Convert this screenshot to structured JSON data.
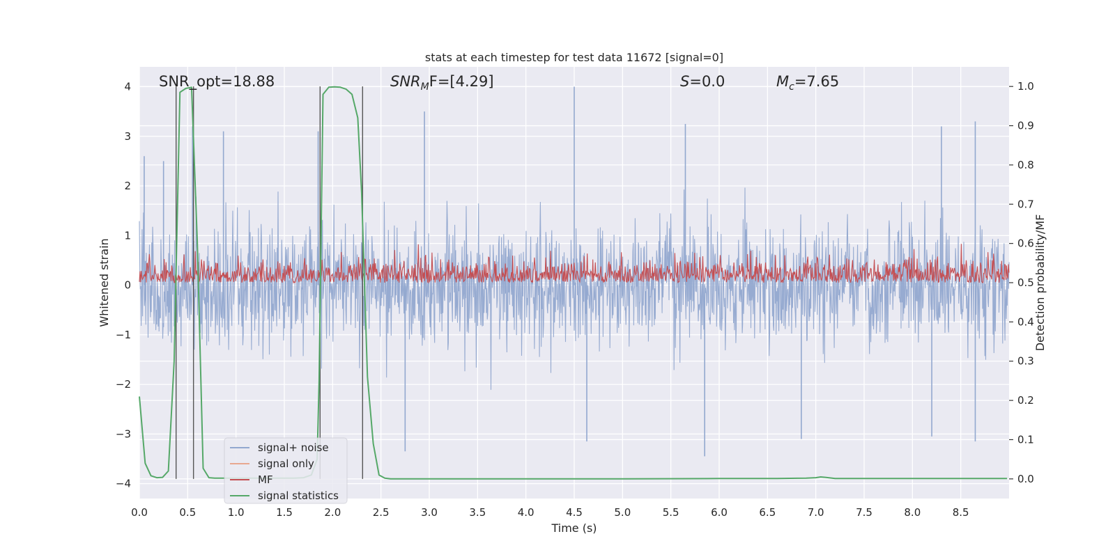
{
  "chart_data": {
    "type": "line",
    "title": "stats at each timestep for test data 11672 [signal=0]",
    "xlabel": "Time (s)",
    "ylabel_left": "Whitened strain",
    "ylabel_right": "Detection probability/MF",
    "xlim": [
      0.0,
      9.0
    ],
    "ylim_left": [
      -4.3,
      4.4
    ],
    "ylim_right": [
      -0.05,
      1.05
    ],
    "xticks": [
      "0.0",
      "0.5",
      "1.0",
      "1.5",
      "2.0",
      "2.5",
      "3.0",
      "3.5",
      "4.0",
      "4.5",
      "5.0",
      "5.5",
      "6.0",
      "6.5",
      "7.0",
      "7.5",
      "8.0",
      "8.5"
    ],
    "yticks_left": [
      "4",
      "3",
      "2",
      "1",
      "0",
      "−1",
      "−2",
      "−3",
      "−4"
    ],
    "yticks_right": [
      "1.0",
      "0.9",
      "0.8",
      "0.7",
      "0.6",
      "0.5",
      "0.4",
      "0.3",
      "0.2",
      "0.1",
      "0.0"
    ],
    "grid": true,
    "legend_position": "lower-left",
    "annotations": {
      "snr_opt": "SNR_opt=18.88",
      "snr_mf_sym": "SNR",
      "snr_mf_sub": "M",
      "snr_mf_rest": "F=[4.29]",
      "s_sym": "S",
      "s_rest": "=0.0",
      "mc_sym": "M",
      "mc_sub": "c",
      "mc_rest": "=7.65"
    },
    "vertical_lines_x": [
      0.38,
      0.56,
      1.87,
      2.31
    ],
    "series": [
      {
        "name": "signal+ noise",
        "axis": "left",
        "color": "#92a8cf",
        "style": "dense noise, approx. amplitude ±1.6 with spikes to ±3.4",
        "peaks": [
          {
            "x": 0.05,
            "y": 2.6
          },
          {
            "x": 0.25,
            "y": 2.5
          },
          {
            "x": 0.55,
            "y": 3.2
          },
          {
            "x": 0.87,
            "y": 3.1
          },
          {
            "x": 1.85,
            "y": 3.1
          },
          {
            "x": 2.95,
            "y": 3.5
          },
          {
            "x": 4.5,
            "y": 4.0
          },
          {
            "x": 5.65,
            "y": 3.25
          },
          {
            "x": 8.3,
            "y": 3.2
          },
          {
            "x": 8.65,
            "y": 3.3
          }
        ],
        "troughs": [
          {
            "x": 2.75,
            "y": -3.35
          },
          {
            "x": 4.63,
            "y": -3.15
          },
          {
            "x": 5.85,
            "y": -3.45
          },
          {
            "x": 6.85,
            "y": -3.1
          },
          {
            "x": 8.2,
            "y": -3.05
          },
          {
            "x": 8.65,
            "y": -3.15
          }
        ]
      },
      {
        "name": "signal only",
        "axis": "left",
        "color": "#e8a78f",
        "values": []
      },
      {
        "name": "MF",
        "axis": "right",
        "color": "#c44e52",
        "style": "dense noise between approx. 0.50 and 0.62",
        "range": [
          0.5,
          0.62
        ]
      },
      {
        "name": "signal statistics",
        "axis": "right",
        "color": "#55a868",
        "x": [
          0.0,
          0.06,
          0.12,
          0.18,
          0.24,
          0.3,
          0.36,
          0.42,
          0.48,
          0.54,
          0.6,
          0.66,
          0.72,
          0.78,
          0.84,
          0.9,
          1.0,
          1.2,
          1.4,
          1.6,
          1.7,
          1.78,
          1.84,
          1.86,
          1.9,
          1.96,
          2.02,
          2.08,
          2.14,
          2.2,
          2.26,
          2.3,
          2.36,
          2.42,
          2.48,
          2.54,
          2.6,
          3.0,
          4.0,
          5.0,
          6.0,
          6.6,
          6.9,
          7.0,
          7.05,
          7.1,
          7.2,
          7.5,
          8.0,
          8.5,
          8.98
        ],
        "y": [
          0.21,
          0.04,
          0.008,
          0.003,
          0.004,
          0.02,
          0.3,
          0.985,
          0.995,
          0.998,
          0.6,
          0.027,
          0.003,
          0.002,
          0.002,
          0.002,
          0.002,
          0.002,
          0.002,
          0.002,
          0.003,
          0.01,
          0.05,
          0.25,
          0.98,
          0.998,
          0.999,
          0.998,
          0.993,
          0.98,
          0.92,
          0.73,
          0.26,
          0.09,
          0.01,
          0.002,
          0.0,
          0.0,
          0.0,
          0.0,
          0.001,
          0.001,
          0.002,
          0.003,
          0.005,
          0.004,
          0.001,
          0.001,
          0.001,
          0.001,
          0.001
        ]
      }
    ]
  }
}
